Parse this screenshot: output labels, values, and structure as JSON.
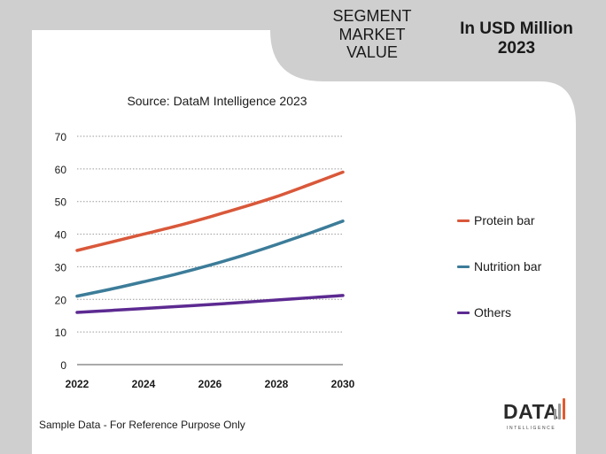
{
  "header": {
    "title_line1": "SEGMENT",
    "title_line2": "MARKET",
    "title_line3": "VALUE",
    "unit_line1": "In USD Million",
    "unit_line2": "2023"
  },
  "source": "Source: DataM Intelligence  2023",
  "footnote": "Sample Data - For Reference Purpose Only",
  "logo": {
    "word": "DATA",
    "sub": "INTELLIGENCE"
  },
  "colors": {
    "background_gray": "#cfcfcf",
    "panel": "#ffffff",
    "grid": "#9a9a9a",
    "axis": "#555555",
    "logo_orange": "#e35a2e",
    "logo_gray": "#9a9a9a"
  },
  "chart_data": {
    "type": "line",
    "title": "",
    "xlabel": "",
    "ylabel": "",
    "x": [
      2022,
      2023,
      2024,
      2025,
      2026,
      2027,
      2028,
      2029,
      2030
    ],
    "x_ticks": [
      "2022",
      "2024",
      "2026",
      "2028",
      "2030"
    ],
    "x_tick_values": [
      2022,
      2024,
      2026,
      2028,
      2030
    ],
    "y_ticks": [
      "0",
      "10",
      "20",
      "30",
      "40",
      "50",
      "60",
      "70"
    ],
    "y_tick_values": [
      0,
      10,
      20,
      30,
      40,
      50,
      60,
      70
    ],
    "ylim": [
      0,
      70
    ],
    "xlim": [
      2022,
      2030
    ],
    "grid": true,
    "legend_position": "right",
    "series": [
      {
        "name": "Protein bar",
        "color": "#d9583a",
        "values": [
          35,
          37.5,
          40,
          42.5,
          45.3,
          48.3,
          51.5,
          55.2,
          59
        ]
      },
      {
        "name": "Nutrition bar",
        "color": "#3c7c99",
        "values": [
          21,
          23.1,
          25.4,
          27.8,
          30.5,
          33.5,
          36.8,
          40.3,
          44
        ]
      },
      {
        "name": "Others",
        "color": "#5c2a91",
        "values": [
          16,
          16.6,
          17.2,
          17.8,
          18.4,
          19.1,
          19.8,
          20.5,
          21.2
        ]
      }
    ]
  }
}
